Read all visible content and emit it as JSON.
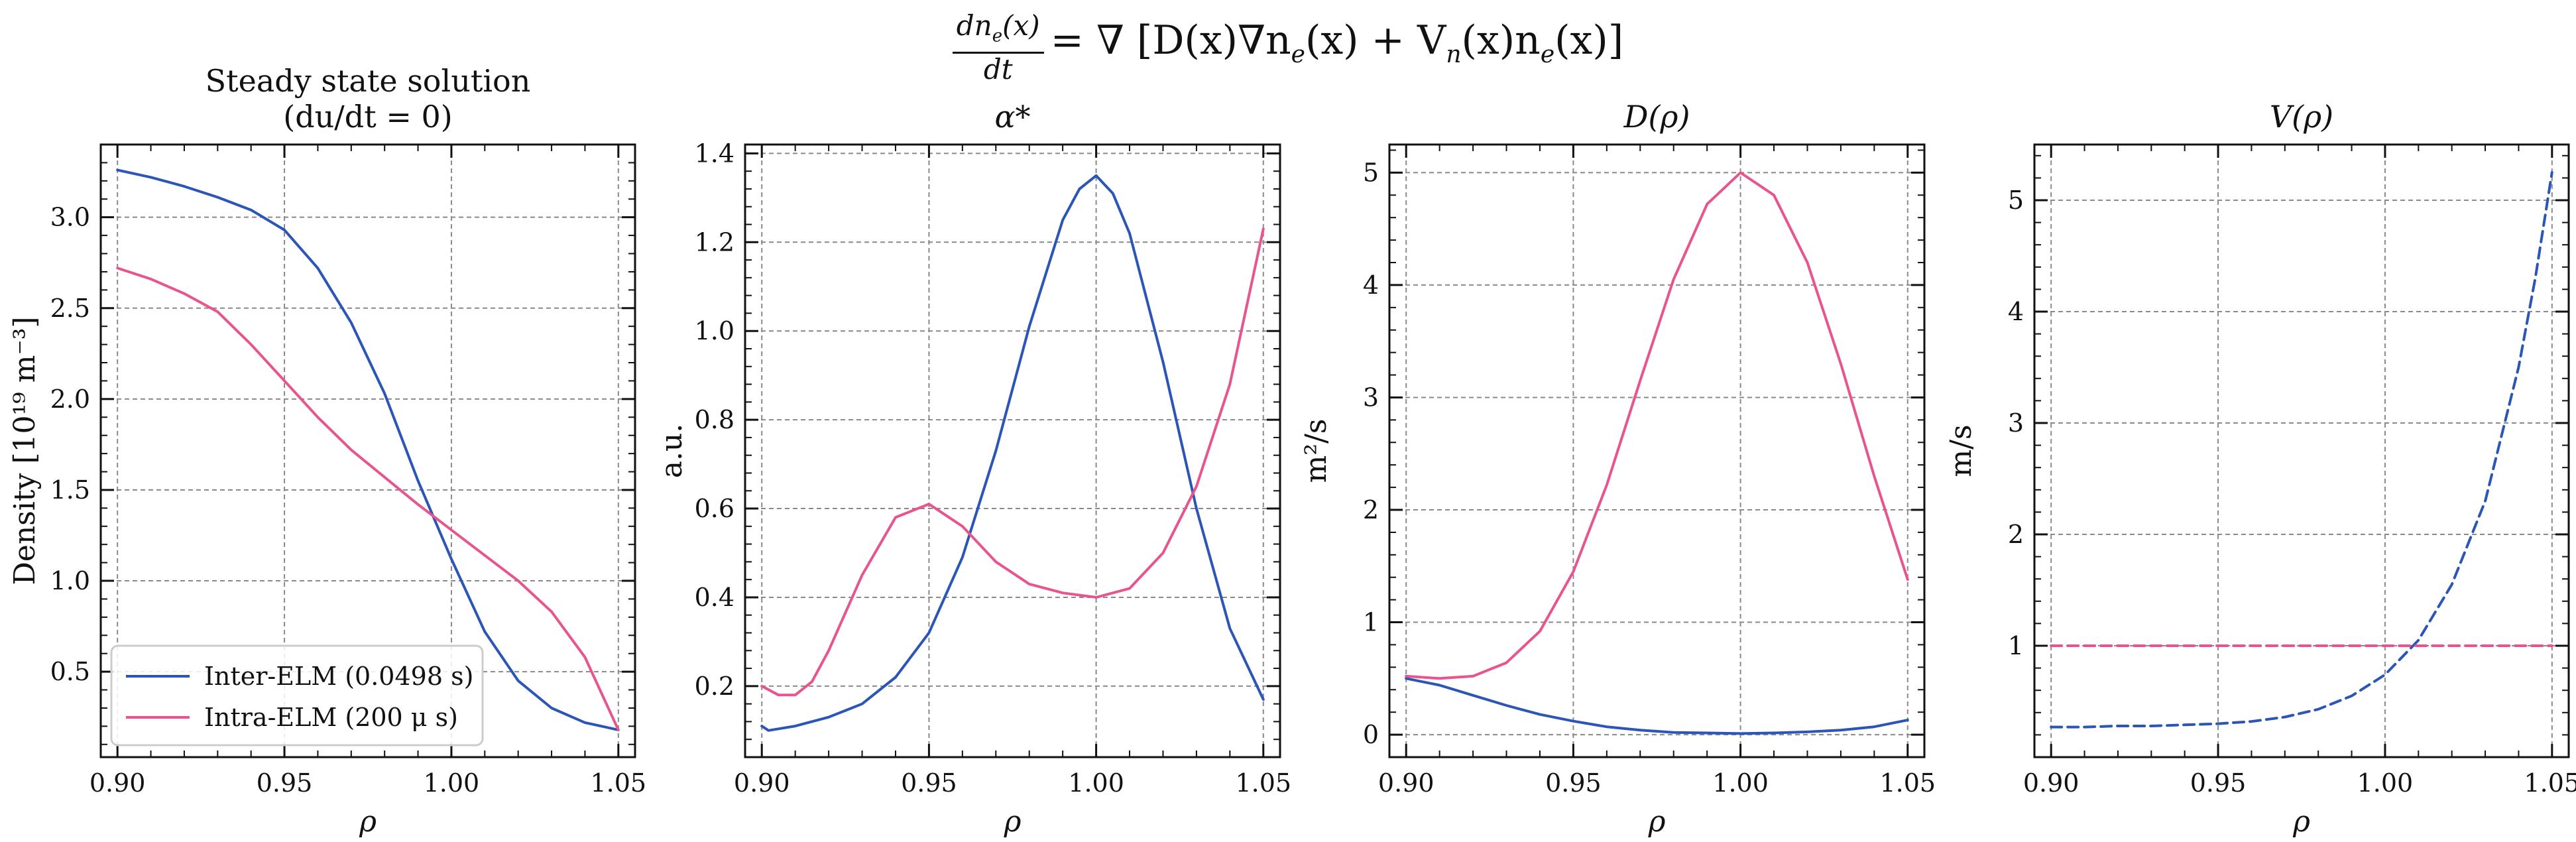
{
  "figure": {
    "suptitle_lhs_num": "dn",
    "suptitle_lhs_num_sub": "e",
    "suptitle_lhs_num_tail": "(x)",
    "suptitle_lhs_den": "dt",
    "suptitle_rhs": "= ∇ [D(x)∇n",
    "suptitle_rhs_2": "e",
    "suptitle_rhs_3": "(x) + V",
    "suptitle_rhs_4": "n",
    "suptitle_rhs_5": "(x)n",
    "suptitle_rhs_6": "e",
    "suptitle_rhs_7": "(x)]"
  },
  "colors": {
    "inter_elm": "#2c55b8",
    "intra_elm": "#e8558e",
    "grid": "#8a8a8a"
  },
  "chart_data": [
    {
      "type": "line",
      "title_line1": "Steady state solution",
      "title_line2": "(du/dt = 0)",
      "xlabel": "ρ",
      "ylabel": "Density [10¹⁹ m⁻³]",
      "xlim": [
        0.895,
        1.055
      ],
      "ylim": [
        0.03,
        3.4
      ],
      "xticks": [
        "0.90",
        "0.95",
        "1.00",
        "1.05"
      ],
      "xtick_values": [
        0.9,
        0.95,
        1.0,
        1.05
      ],
      "yticks": [
        "0.5",
        "1.0",
        "1.5",
        "2.0",
        "2.5",
        "3.0"
      ],
      "ytick_values": [
        0.5,
        1.0,
        1.5,
        2.0,
        2.5,
        3.0
      ],
      "grid": true,
      "legend_position": "lower-left",
      "series": [
        {
          "name": "Inter-ELM (0.0498 s)",
          "color_key": "inter_elm",
          "dash": false,
          "x": [
            0.9,
            0.91,
            0.92,
            0.93,
            0.94,
            0.95,
            0.96,
            0.97,
            0.98,
            0.99,
            1.0,
            1.01,
            1.02,
            1.03,
            1.04,
            1.05
          ],
          "y": [
            3.26,
            3.22,
            3.17,
            3.11,
            3.04,
            2.93,
            2.72,
            2.42,
            2.03,
            1.55,
            1.12,
            0.72,
            0.45,
            0.3,
            0.22,
            0.18
          ]
        },
        {
          "name": "Intra-ELM (200 μ s)",
          "color_key": "intra_elm",
          "dash": false,
          "x": [
            0.9,
            0.91,
            0.92,
            0.93,
            0.94,
            0.95,
            0.96,
            0.97,
            0.98,
            0.99,
            1.0,
            1.01,
            1.02,
            1.03,
            1.04,
            1.05
          ],
          "y": [
            2.72,
            2.66,
            2.58,
            2.48,
            2.3,
            2.1,
            1.9,
            1.72,
            1.57,
            1.42,
            1.28,
            1.14,
            1.0,
            0.83,
            0.58,
            0.18
          ]
        }
      ]
    },
    {
      "type": "line",
      "title": "α*",
      "xlabel": "ρ",
      "ylabel": "a.u.",
      "xlim": [
        0.895,
        1.055
      ],
      "ylim": [
        0.04,
        1.42
      ],
      "xticks": [
        "0.90",
        "0.95",
        "1.00",
        "1.05"
      ],
      "xtick_values": [
        0.9,
        0.95,
        1.0,
        1.05
      ],
      "yticks": [
        "0.2",
        "0.4",
        "0.6",
        "0.8",
        "1.0",
        "1.2",
        "1.4"
      ],
      "ytick_values": [
        0.2,
        0.4,
        0.6,
        0.8,
        1.0,
        1.2,
        1.4
      ],
      "grid": true,
      "series": [
        {
          "name": "",
          "color_key": "inter_elm",
          "dash": false,
          "x": [
            0.9,
            0.902,
            0.91,
            0.92,
            0.93,
            0.94,
            0.95,
            0.96,
            0.97,
            0.98,
            0.99,
            0.995,
            1.0,
            1.005,
            1.01,
            1.02,
            1.03,
            1.04,
            1.05
          ],
          "y": [
            0.11,
            0.1,
            0.11,
            0.13,
            0.16,
            0.22,
            0.32,
            0.49,
            0.73,
            1.01,
            1.25,
            1.32,
            1.35,
            1.31,
            1.22,
            0.93,
            0.6,
            0.33,
            0.17
          ]
        },
        {
          "name": "",
          "color_key": "intra_elm",
          "dash": false,
          "x": [
            0.9,
            0.905,
            0.91,
            0.915,
            0.92,
            0.93,
            0.94,
            0.95,
            0.96,
            0.97,
            0.98,
            0.99,
            1.0,
            1.01,
            1.02,
            1.03,
            1.04,
            1.05
          ],
          "y": [
            0.2,
            0.18,
            0.18,
            0.21,
            0.28,
            0.45,
            0.58,
            0.61,
            0.56,
            0.48,
            0.43,
            0.41,
            0.4,
            0.42,
            0.5,
            0.65,
            0.88,
            1.23
          ]
        }
      ]
    },
    {
      "type": "line",
      "title": "D(ρ)",
      "xlabel": "ρ",
      "ylabel": "m²/s",
      "xlim": [
        0.895,
        1.055
      ],
      "ylim": [
        -0.2,
        5.25
      ],
      "xticks": [
        "0.90",
        "0.95",
        "1.00",
        "1.05"
      ],
      "xtick_values": [
        0.9,
        0.95,
        1.0,
        1.05
      ],
      "yticks": [
        "0",
        "1",
        "2",
        "3",
        "4",
        "5"
      ],
      "ytick_values": [
        0,
        1,
        2,
        3,
        4,
        5
      ],
      "grid": true,
      "series": [
        {
          "name": "",
          "color_key": "inter_elm",
          "dash": false,
          "x": [
            0.9,
            0.91,
            0.92,
            0.93,
            0.94,
            0.95,
            0.96,
            0.97,
            0.98,
            0.99,
            1.0,
            1.01,
            1.02,
            1.03,
            1.04,
            1.05
          ],
          "y": [
            0.5,
            0.44,
            0.35,
            0.26,
            0.18,
            0.12,
            0.07,
            0.04,
            0.02,
            0.015,
            0.01,
            0.015,
            0.025,
            0.04,
            0.07,
            0.13
          ]
        },
        {
          "name": "",
          "color_key": "intra_elm",
          "dash": false,
          "x": [
            0.9,
            0.91,
            0.92,
            0.93,
            0.94,
            0.95,
            0.96,
            0.97,
            0.98,
            0.99,
            1.0,
            1.01,
            1.02,
            1.03,
            1.04,
            1.05
          ],
          "y": [
            0.52,
            0.5,
            0.52,
            0.64,
            0.92,
            1.45,
            2.22,
            3.15,
            4.05,
            4.72,
            5.0,
            4.8,
            4.2,
            3.3,
            2.3,
            1.38
          ]
        }
      ]
    },
    {
      "type": "line",
      "title": "V(ρ)",
      "xlabel": "ρ",
      "ylabel": "m/s",
      "xlim": [
        0.895,
        1.055
      ],
      "ylim": [
        0.0,
        5.5
      ],
      "xticks": [
        "0.90",
        "0.95",
        "1.00",
        "1.05"
      ],
      "xtick_values": [
        0.9,
        0.95,
        1.0,
        1.05
      ],
      "yticks": [
        "1",
        "2",
        "3",
        "4",
        "5"
      ],
      "ytick_values": [
        1,
        2,
        3,
        4,
        5
      ],
      "grid": true,
      "series": [
        {
          "name": "",
          "color_key": "inter_elm",
          "dash": true,
          "x": [
            0.9,
            0.91,
            0.92,
            0.93,
            0.94,
            0.95,
            0.96,
            0.97,
            0.98,
            0.99,
            1.0,
            1.01,
            1.02,
            1.03,
            1.04,
            1.045,
            1.05
          ],
          "y": [
            0.27,
            0.27,
            0.28,
            0.28,
            0.29,
            0.3,
            0.32,
            0.36,
            0.43,
            0.55,
            0.74,
            1.05,
            1.55,
            2.3,
            3.5,
            4.3,
            5.25
          ]
        },
        {
          "name": "",
          "color_key": "intra_elm",
          "dash": true,
          "x": [
            0.9,
            1.05
          ],
          "y": [
            1.0,
            1.0
          ]
        }
      ]
    }
  ]
}
